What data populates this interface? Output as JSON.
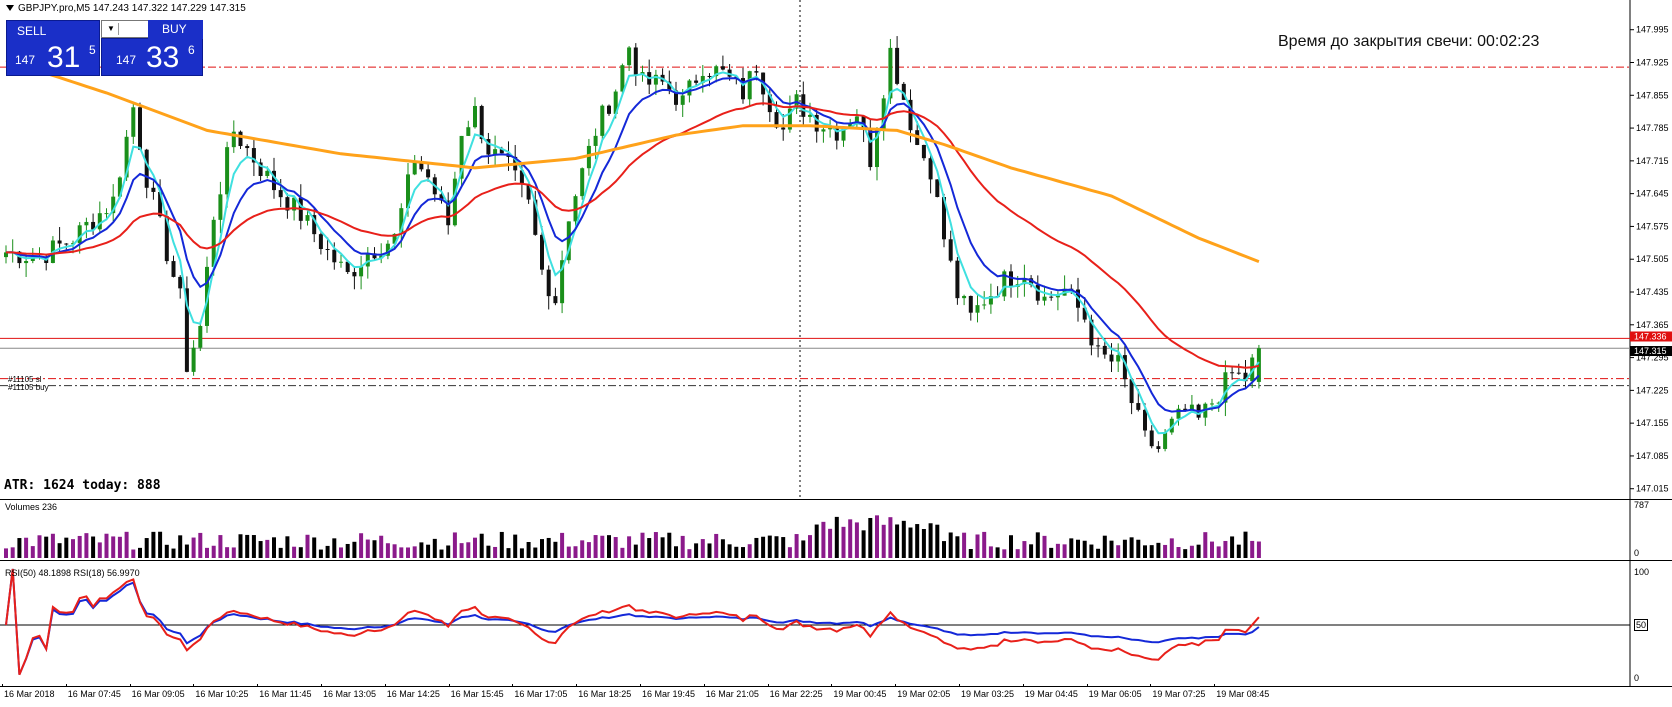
{
  "header": {
    "symbol_line": "GBPJPY.pro,M5  147.243 147.322 147.229 147.315"
  },
  "one_click": {
    "sell_label": "SELL",
    "buy_label": "BUY",
    "sell_price_prefix": "147",
    "sell_price_big": "31",
    "sell_price_sup": "5",
    "buy_price_prefix": "147",
    "buy_price_big": "33",
    "buy_price_sup": "6",
    "lot_value": ""
  },
  "timer_text": "Время до закрытия свечи: 00:02:23",
  "atr_text": "ATR: 1624  today: 888",
  "order_labels": [
    "#11105  sl",
    "#11105  buy"
  ],
  "volume_panel": {
    "label": "Volumes 236",
    "scale_top": "787",
    "scale_bottom": "0"
  },
  "rsi_panel": {
    "label": "RSI(50) 48.1898  RSI(18) 56.9970",
    "scale_top": "100",
    "scale_mid": "50",
    "scale_bottom": "0"
  },
  "price_axis": {
    "ticks": [
      "147.995",
      "147.925",
      "147.855",
      "147.785",
      "147.715",
      "147.645",
      "147.575",
      "147.505",
      "147.435",
      "147.365",
      "147.295",
      "147.225",
      "147.155",
      "147.085",
      "147.015"
    ],
    "ask_label": "147.336",
    "bid_label": "147.315"
  },
  "time_axis": [
    "16 Mar 2018",
    "16 Mar 07:45",
    "16 Mar 09:05",
    "16 Mar 10:25",
    "16 Mar 11:45",
    "16 Mar 13:05",
    "16 Mar 14:25",
    "16 Mar 15:45",
    "16 Mar 17:05",
    "16 Mar 18:25",
    "16 Mar 19:45",
    "16 Mar 21:05",
    "16 Mar 22:25",
    "19 Mar 00:45",
    "19 Mar 02:05",
    "19 Mar 03:25",
    "19 Mar 04:45",
    "19 Mar 06:05",
    "19 Mar 07:25",
    "19 Mar 08:45"
  ],
  "colors": {
    "bull": "#1a8f1a",
    "bear": "#111111",
    "ma_fast": "#3fe0e0",
    "ma_mid": "#1428d8",
    "ma_slow": "#e8201a",
    "ma_long": "#ffa21a",
    "volume_bar": "#8b1a8b",
    "rsi50": "#1428d8",
    "rsi18": "#e8201a",
    "level_line": "#e01010",
    "button_bg": "#1a2fc8"
  },
  "chart_data": {
    "type": "candlestick",
    "symbol": "GBPJPY.pro",
    "timeframe": "M5",
    "ohlc_last": {
      "open": 147.243,
      "high": 147.322,
      "low": 147.229,
      "close": 147.315
    },
    "ylim": [
      147.0,
      148.03
    ],
    "close_path": [
      [
        0,
        147.52
      ],
      [
        5,
        147.51
      ],
      [
        10,
        147.55
      ],
      [
        16,
        147.63
      ],
      [
        19,
        147.83
      ],
      [
        21,
        147.68
      ],
      [
        24,
        147.52
      ],
      [
        26,
        147.42
      ],
      [
        27,
        147.28
      ],
      [
        29,
        147.36
      ],
      [
        31,
        147.6
      ],
      [
        34,
        147.78
      ],
      [
        37,
        147.72
      ],
      [
        40,
        147.66
      ],
      [
        44,
        147.6
      ],
      [
        48,
        147.52
      ],
      [
        51,
        147.47
      ],
      [
        54,
        147.52
      ],
      [
        58,
        147.55
      ],
      [
        61,
        147.72
      ],
      [
        63,
        147.68
      ],
      [
        66,
        147.58
      ],
      [
        68,
        147.78
      ],
      [
        70,
        147.82
      ],
      [
        72,
        147.74
      ],
      [
        75,
        147.7
      ],
      [
        78,
        147.62
      ],
      [
        80,
        147.48
      ],
      [
        82,
        147.42
      ],
      [
        84,
        147.6
      ],
      [
        88,
        147.78
      ],
      [
        91,
        147.87
      ],
      [
        93,
        147.96
      ],
      [
        95,
        147.88
      ],
      [
        98,
        147.88
      ],
      [
        101,
        147.84
      ],
      [
        104,
        147.92
      ],
      [
        107,
        147.9
      ],
      [
        110,
        147.86
      ],
      [
        112,
        147.92
      ],
      [
        114,
        147.84
      ],
      [
        116,
        147.78
      ],
      [
        118,
        147.84
      ],
      [
        121,
        147.8
      ],
      [
        124,
        147.78
      ],
      [
        127,
        147.82
      ],
      [
        129,
        147.72
      ],
      [
        132,
        147.95
      ],
      [
        134,
        147.85
      ],
      [
        136,
        147.75
      ],
      [
        138,
        147.7
      ],
      [
        140,
        147.55
      ],
      [
        142,
        147.43
      ],
      [
        144,
        147.38
      ],
      [
        146,
        147.42
      ],
      [
        149,
        147.46
      ],
      [
        152,
        147.48
      ],
      [
        155,
        147.42
      ],
      [
        158,
        147.44
      ],
      [
        161,
        147.38
      ],
      [
        163,
        147.3
      ],
      [
        166,
        147.28
      ],
      [
        168,
        147.2
      ],
      [
        170,
        147.12
      ],
      [
        172,
        147.1
      ],
      [
        174,
        147.15
      ],
      [
        176,
        147.18
      ],
      [
        178,
        147.16
      ],
      [
        181,
        147.22
      ],
      [
        183,
        147.26
      ],
      [
        185,
        147.25
      ],
      [
        187,
        147.315
      ]
    ],
    "ma_long_path": [
      [
        0,
        147.93
      ],
      [
        15,
        147.86
      ],
      [
        30,
        147.78
      ],
      [
        50,
        147.73
      ],
      [
        70,
        147.7
      ],
      [
        85,
        147.72
      ],
      [
        100,
        147.77
      ],
      [
        110,
        147.79
      ],
      [
        120,
        147.79
      ],
      [
        133,
        147.78
      ],
      [
        140,
        147.75
      ],
      [
        150,
        147.7
      ],
      [
        165,
        147.64
      ],
      [
        178,
        147.55
      ],
      [
        187,
        147.5
      ]
    ],
    "horizontal_levels": [
      147.915,
      147.336,
      147.315,
      147.25,
      147.235
    ],
    "indicators": {
      "volumes_last": 236,
      "volumes_max": 787,
      "rsi50": 48.1898,
      "rsi18": 56.997
    }
  }
}
